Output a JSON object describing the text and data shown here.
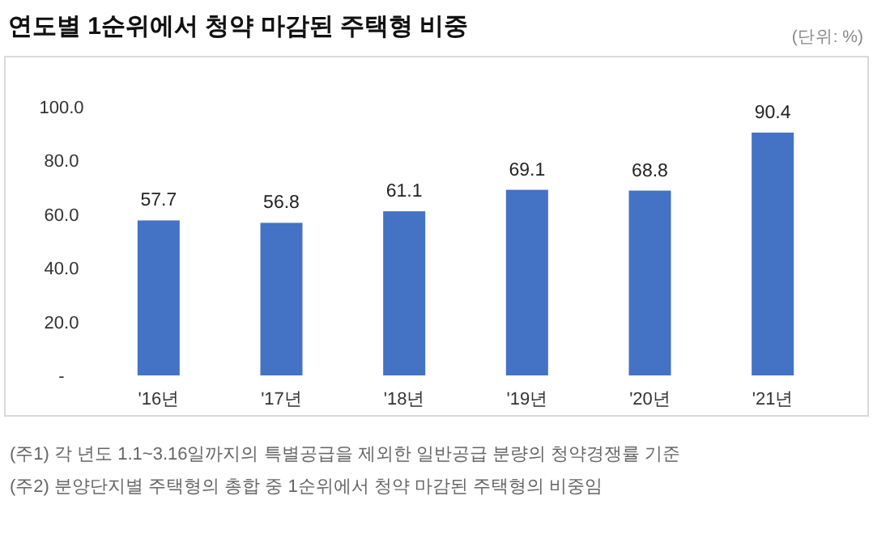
{
  "chart_data": {
    "type": "bar",
    "title": "연도별 1순위에서 청약 마감된 주택형 비중",
    "categories": [
      "'16년",
      "'17년",
      "'18년",
      "'19년",
      "'20년",
      "'21년"
    ],
    "values": [
      57.7,
      56.8,
      61.1,
      69.1,
      68.8,
      90.4
    ],
    "color": "#4472c4",
    "ylim": [
      0,
      100
    ],
    "yticks": [
      {
        "value": 0,
        "label": "-"
      },
      {
        "value": 20,
        "label": "20.0"
      },
      {
        "value": 40,
        "label": "40.0"
      },
      {
        "value": 60,
        "label": "60.0"
      },
      {
        "value": 80,
        "label": "80.0"
      },
      {
        "value": 100,
        "label": "100.0"
      }
    ],
    "grid": false,
    "data_labels": true,
    "annotations": [
      "(단위: %)",
      "(주1) 각 년도 1.1~3.16일까지의 특별공급을 제외한 일반공급 분량의 청약경쟁률 기준",
      "(주2) 분양단지별 주택형의 총합 중 1순위에서 청약 마감된 주택형의 비중임"
    ]
  }
}
